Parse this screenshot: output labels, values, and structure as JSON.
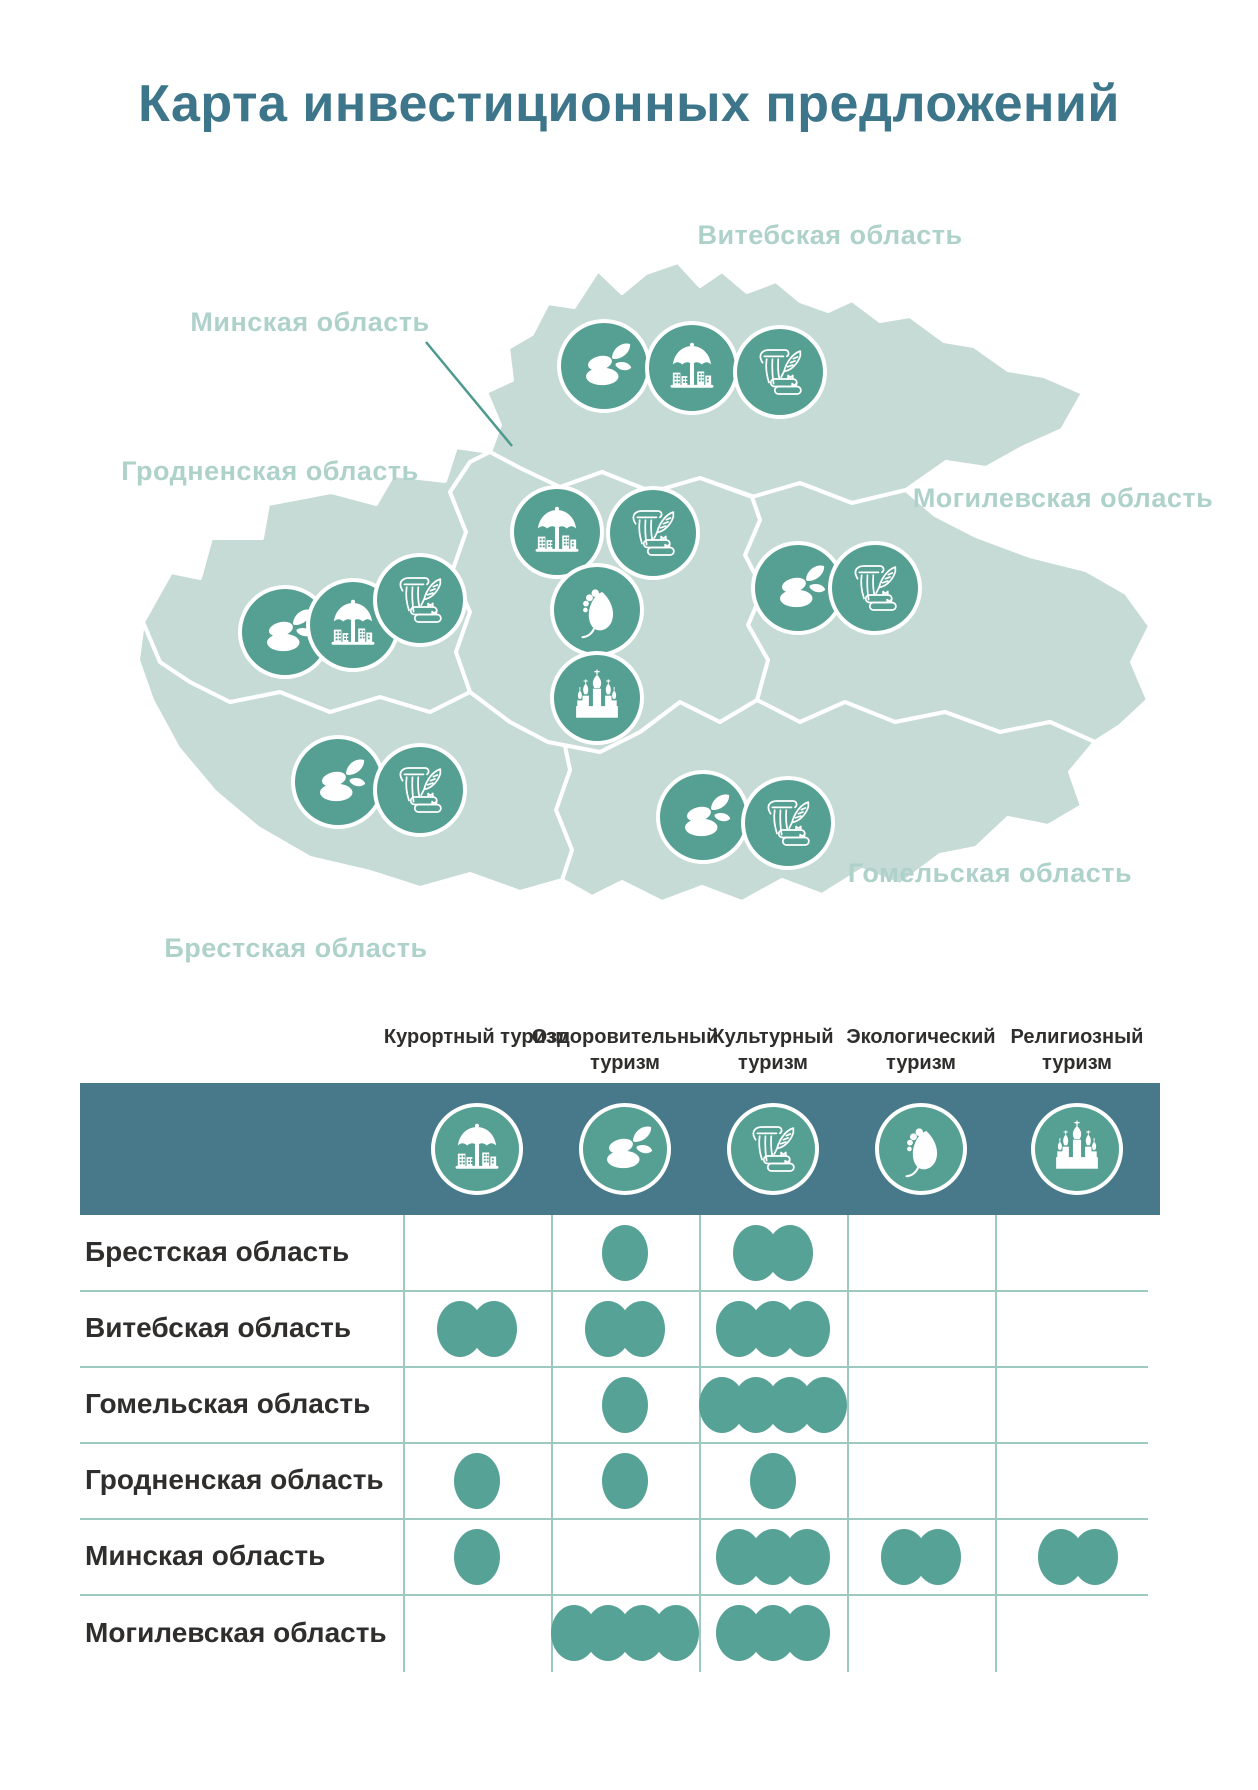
{
  "title": "Карта инвестиционных предложений",
  "map": {
    "region_labels": {
      "vitebsk": "Витебская область",
      "minsk": "Минская область",
      "grodno": "Гродненская область",
      "mogilev": "Могилевская область",
      "gomel": "Гомельская область",
      "brest": "Брестская область"
    },
    "markers": {
      "vitebsk": [
        "health",
        "resort",
        "culture"
      ],
      "minsk": [
        "resort",
        "culture",
        "eco",
        "religion"
      ],
      "grodno": [
        "health",
        "resort",
        "culture"
      ],
      "mogilev": [
        "health",
        "culture"
      ],
      "brest": [
        "health",
        "culture"
      ],
      "gomel": [
        "health",
        "culture"
      ]
    }
  },
  "tourism_types": [
    {
      "id": "resort",
      "label": "Курортный туризм"
    },
    {
      "id": "health",
      "label": "Оздоровительный туризм"
    },
    {
      "id": "culture",
      "label": "Культурный туризм"
    },
    {
      "id": "eco",
      "label": "Экологический туризм"
    },
    {
      "id": "religion",
      "label": "Религиозный туризм"
    }
  ],
  "chart_data": {
    "type": "table",
    "title": "Карта инвестиционных предложений",
    "columns": [
      "Курортный туризм",
      "Оздоровительный туризм",
      "Культурный туризм",
      "Экологический туризм",
      "Религиозный туризм"
    ],
    "rows": [
      {
        "region": "Брестская область",
        "values": [
          0,
          1,
          2,
          0,
          0
        ]
      },
      {
        "region": "Витебская область",
        "values": [
          2,
          2,
          3,
          0,
          0
        ]
      },
      {
        "region": "Гомельская область",
        "values": [
          0,
          1,
          4,
          0,
          0
        ]
      },
      {
        "region": "Гродненская область",
        "values": [
          1,
          1,
          1,
          0,
          0
        ]
      },
      {
        "region": "Минская область",
        "values": [
          1,
          0,
          3,
          2,
          2
        ]
      },
      {
        "region": "Могилевская область",
        "values": [
          0,
          4,
          3,
          0,
          0
        ]
      }
    ]
  },
  "colors": {
    "title": "#3d758a",
    "map_fill": "#c6dbd5",
    "map_label": "#aed2ca",
    "icon_circle": "#55a093",
    "header_band": "#48798b",
    "table_line": "#9ccac1",
    "dot": "#57a296",
    "text_dark": "#2f2e2d"
  }
}
